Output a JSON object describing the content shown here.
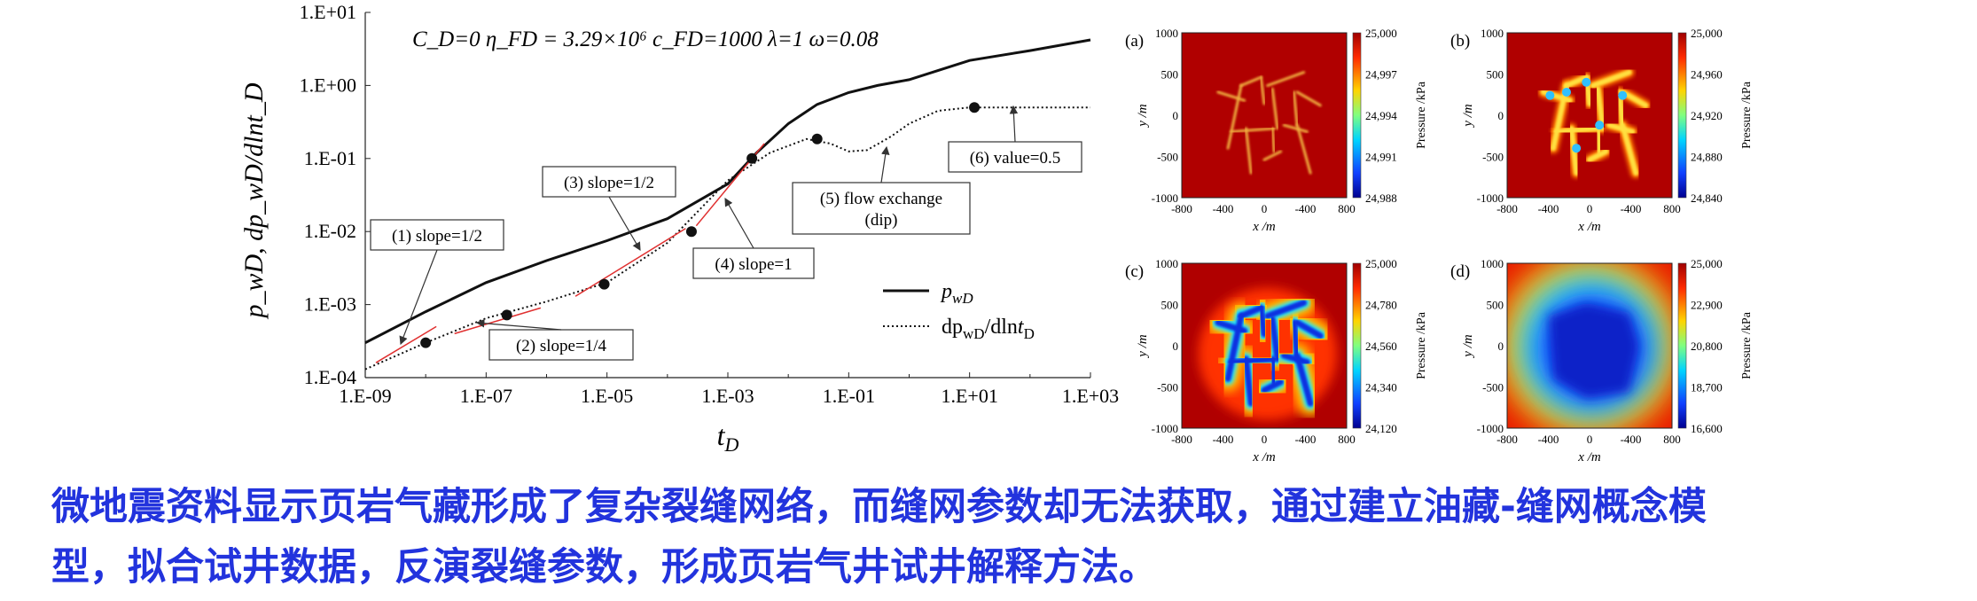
{
  "chart_data": [
    {
      "type": "line",
      "log_x": true,
      "log_y": true,
      "xlabel": "t_D",
      "ylabel": "p_wD, dp_wD/dlnt_D",
      "xlim": [
        1e-09,
        1000
      ],
      "ylim": [
        0.0001,
        10
      ],
      "x_ticks": [
        "1.E-09",
        "1.E-07",
        "1.E-05",
        "1.E-03",
        "1.E-01",
        "1.E+01",
        "1.E+03"
      ],
      "y_ticks": [
        "1.E-04",
        "1.E-03",
        "1.E-02",
        "1.E-01",
        "1.E+00",
        "1.E+01"
      ],
      "parameters": "C_D=0   η_FD = 3.29×10⁶   c_FD=1000   λ=1   ω=0.08",
      "legend": {
        "position": "bottom-right",
        "entries": [
          "p_wD",
          "dp_wD/dlnt_D"
        ]
      },
      "series": [
        {
          "name": "p_wD",
          "style": "solid",
          "x": [
            1e-09,
            1e-08,
            1e-07,
            1e-06,
            1e-05,
            0.0001,
            0.001,
            0.003,
            0.01,
            0.03,
            0.1,
            0.3,
            1,
            3,
            10,
            100,
            1000
          ],
          "y": [
            0.0003,
            0.0008,
            0.002,
            0.004,
            0.0075,
            0.015,
            0.045,
            0.12,
            0.3,
            0.55,
            0.8,
            1.0,
            1.2,
            1.6,
            2.2,
            3.0,
            4.2
          ]
        },
        {
          "name": "dp_wD/dlnt_D",
          "style": "dotted",
          "x": [
            1e-09,
            1e-08,
            1e-07,
            1e-06,
            1e-05,
            0.0001,
            0.001,
            0.005,
            0.02,
            0.05,
            0.1,
            0.2,
            0.5,
            1,
            3,
            10,
            100,
            1000
          ],
          "y": [
            0.00013,
            0.0003,
            0.00065,
            0.0011,
            0.002,
            0.007,
            0.05,
            0.12,
            0.185,
            0.16,
            0.125,
            0.13,
            0.2,
            0.3,
            0.45,
            0.5,
            0.5,
            0.5
          ]
        }
      ],
      "markers": [
        {
          "x": 1e-08,
          "y": 0.0003
        },
        {
          "x": 2.2e-07,
          "y": 0.00072
        },
        {
          "x": 9e-06,
          "y": 0.0019
        },
        {
          "x": 0.00025,
          "y": 0.01
        },
        {
          "x": 0.0025,
          "y": 0.1
        },
        {
          "x": 0.03,
          "y": 0.185
        },
        {
          "x": 12,
          "y": 0.5
        }
      ],
      "annotations": [
        {
          "text": "(1) slope=1/2",
          "x": 1e-08,
          "y": 0.0003
        },
        {
          "text": "(2) slope=1/4",
          "x": 1e-07,
          "y": 0.0005
        },
        {
          "text": "(3) slope=1/2",
          "x": 2e-05,
          "y": 0.0055
        },
        {
          "text": "(4) slope=1",
          "x": 0.0015,
          "y": 0.04
        },
        {
          "text": "(5) flow exchange",
          "text2": "(dip)",
          "x": 0.3,
          "y": 0.1
        },
        {
          "text": "(6) value=0.5",
          "x": 100,
          "y": 0.5
        }
      ]
    },
    {
      "type": "heatmap",
      "panels": [
        {
          "label": "(a)",
          "colorbar_ticks": [
            "25,000",
            "24,997",
            "24,994",
            "24,991",
            "24,988"
          ],
          "stage": "a"
        },
        {
          "label": "(b)",
          "colorbar_ticks": [
            "25,000",
            "24,960",
            "24,920",
            "24,880",
            "24,840"
          ],
          "stage": "b"
        },
        {
          "label": "(c)",
          "colorbar_ticks": [
            "25,000",
            "24,780",
            "24,560",
            "24,340",
            "24,120"
          ],
          "stage": "c"
        },
        {
          "label": "(d)",
          "colorbar_ticks": [
            "25,000",
            "22,900",
            "20,800",
            "18,700",
            "16,600"
          ],
          "stage": "d"
        }
      ],
      "x_ticks": [
        "-800",
        "-400",
        "0",
        "-400",
        "800"
      ],
      "y_ticks": [
        "1000",
        "500",
        "0",
        "-500",
        "-1000"
      ],
      "xlabel": "x /m",
      "ylabel": "y /m",
      "colorbar_label": "Pressure /kPa"
    }
  ],
  "caption": {
    "line1": "微地震资料显示页岩气藏形成了复杂裂缝网络，而缝网参数却无法获取，通过建立油藏-缝网概念模",
    "line2": "型，拟合试井数据，反演裂缝参数，形成页岩气井试井解释方法。"
  }
}
